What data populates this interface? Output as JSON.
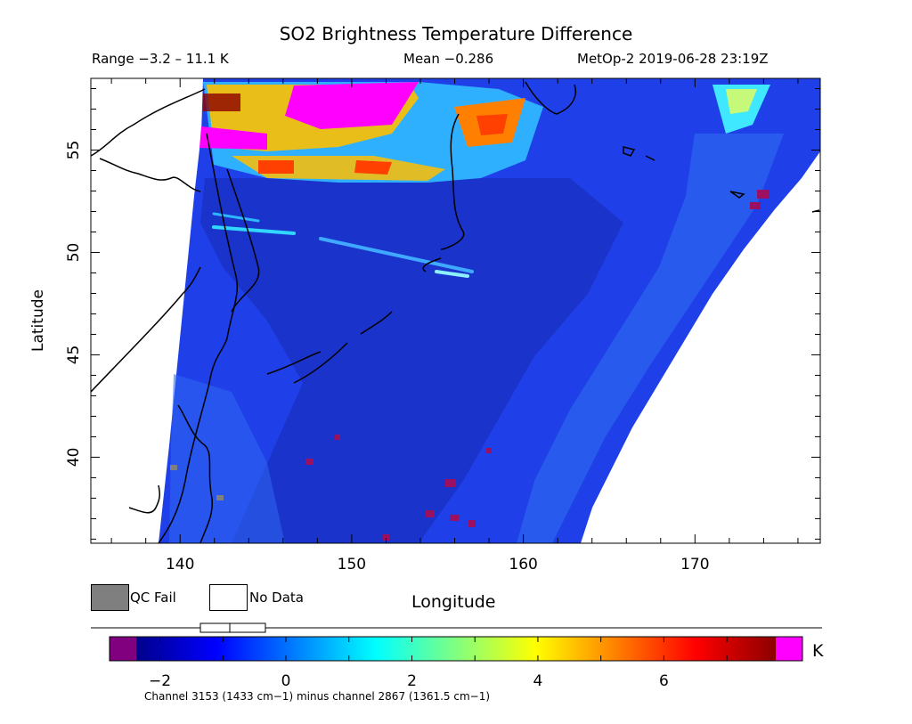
{
  "header": {
    "title": "SO2 Brightness Temperature Difference",
    "range": "Range −3.2 – 11.1 K",
    "mean": "Mean −0.286",
    "satellite": "MetOp-2 2019-06-28 23:19Z"
  },
  "axes": {
    "xlabel": "Longitude",
    "ylabel": "Latitude",
    "xlim": [
      134.8,
      177.3
    ],
    "ylim": [
      35.8,
      58.5
    ],
    "xticks": [
      "140",
      "150",
      "160",
      "170"
    ],
    "yticks": [
      "40",
      "45",
      "50",
      "55"
    ],
    "xtick_values": [
      140,
      150,
      160,
      170
    ],
    "ytick_values": [
      40,
      45,
      50,
      55
    ]
  },
  "legend": {
    "qc_fail": "QC Fail",
    "no_data": "No Data",
    "qc_fail_color": "#7f7f7f",
    "no_data_color": "#ffffff"
  },
  "colorbar": {
    "ticks": [
      "−2",
      "0",
      "2",
      "4",
      "6"
    ],
    "tick_values": [
      -2,
      0,
      2,
      4,
      6
    ],
    "range": [
      -2.8,
      8.2
    ],
    "unit": "K",
    "caption": "Channel 3153 (1433 cm−1) minus channel 2867 (1361.5 cm−1)",
    "under_color": "#800080",
    "over_color": "#ff00ff",
    "stops": [
      "#00008c",
      "#0000ff",
      "#0080ff",
      "#00ffff",
      "#80ff80",
      "#ffff00",
      "#ff8000",
      "#ff0000",
      "#8c0000"
    ]
  },
  "map": {
    "swath_color": "#1e3ce6",
    "plume_colors": [
      "#ff00ff",
      "#ff4000",
      "#ffc000",
      "#40d0ff",
      "#8c0000"
    ],
    "coastline_color": "#000000"
  }
}
